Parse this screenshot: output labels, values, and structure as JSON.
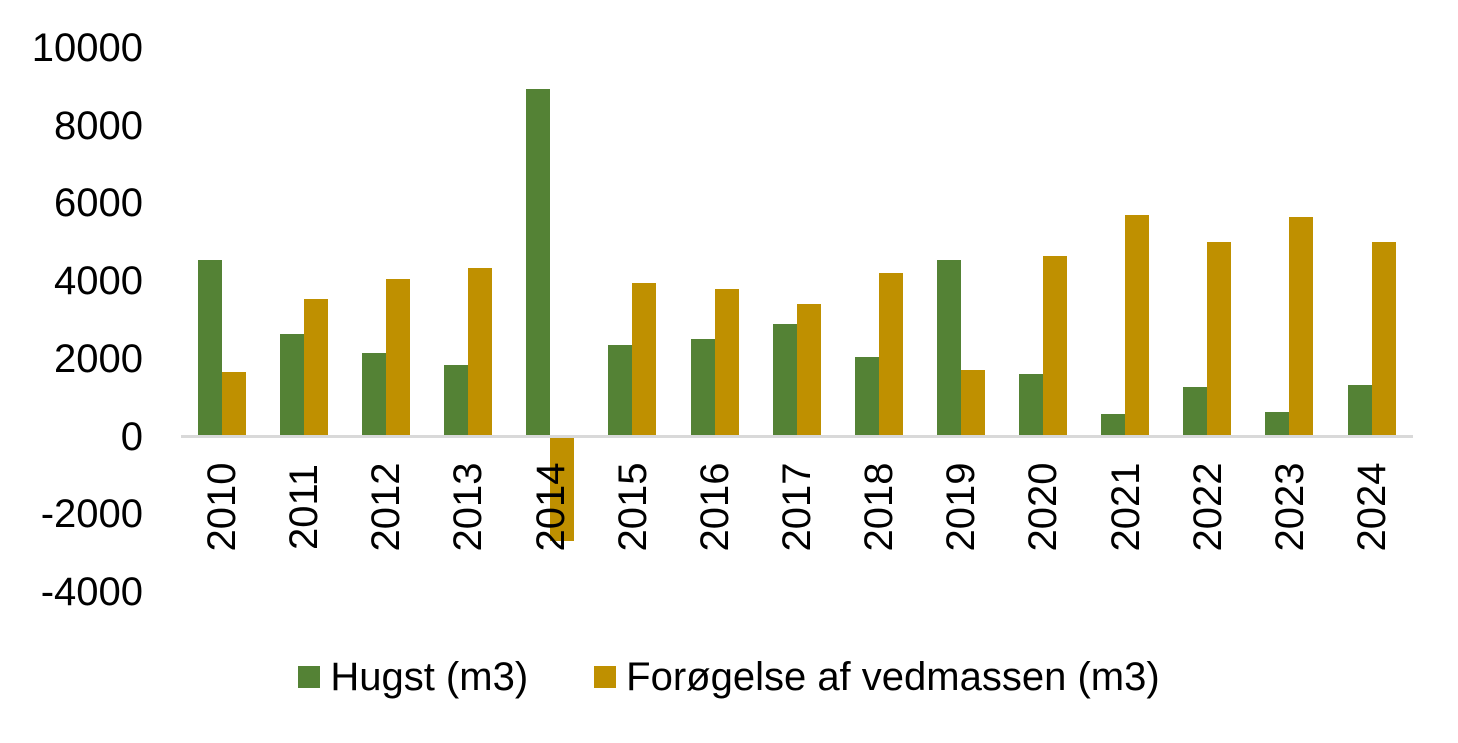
{
  "chart_data": {
    "type": "bar",
    "title": "",
    "xlabel": "",
    "ylabel": "",
    "categories": [
      "2010",
      "2011",
      "2012",
      "2013",
      "2014",
      "2015",
      "2016",
      "2017",
      "2018",
      "2019",
      "2020",
      "2021",
      "2022",
      "2023",
      "2024"
    ],
    "series": [
      {
        "name": "Hugst (m3)",
        "color": "#548235",
        "values": [
          4550,
          2650,
          2150,
          1850,
          8950,
          2350,
          2500,
          2900,
          2050,
          4550,
          1600,
          580,
          1280,
          630,
          1320
        ]
      },
      {
        "name": "Forøgelse af vedmassen (m3)",
        "color": "#BF9000",
        "values": [
          1650,
          3550,
          4050,
          4350,
          -2650,
          3950,
          3800,
          3400,
          4200,
          1700,
          4650,
          5700,
          5000,
          5650,
          5000
        ]
      }
    ],
    "ylim": [
      -4000,
      10000
    ],
    "yticks": [
      10000,
      8000,
      6000,
      4000,
      2000,
      0,
      -2000,
      -4000
    ],
    "ytick_labels": [
      "10000",
      "8000",
      "6000",
      "4000",
      "2000",
      "0",
      "-2000",
      "-4000"
    ],
    "grid": false,
    "legend_position": "bottom",
    "axis_line_color": "#D9D9D9",
    "text_color": "#000000",
    "background": "#FFFFFF"
  }
}
